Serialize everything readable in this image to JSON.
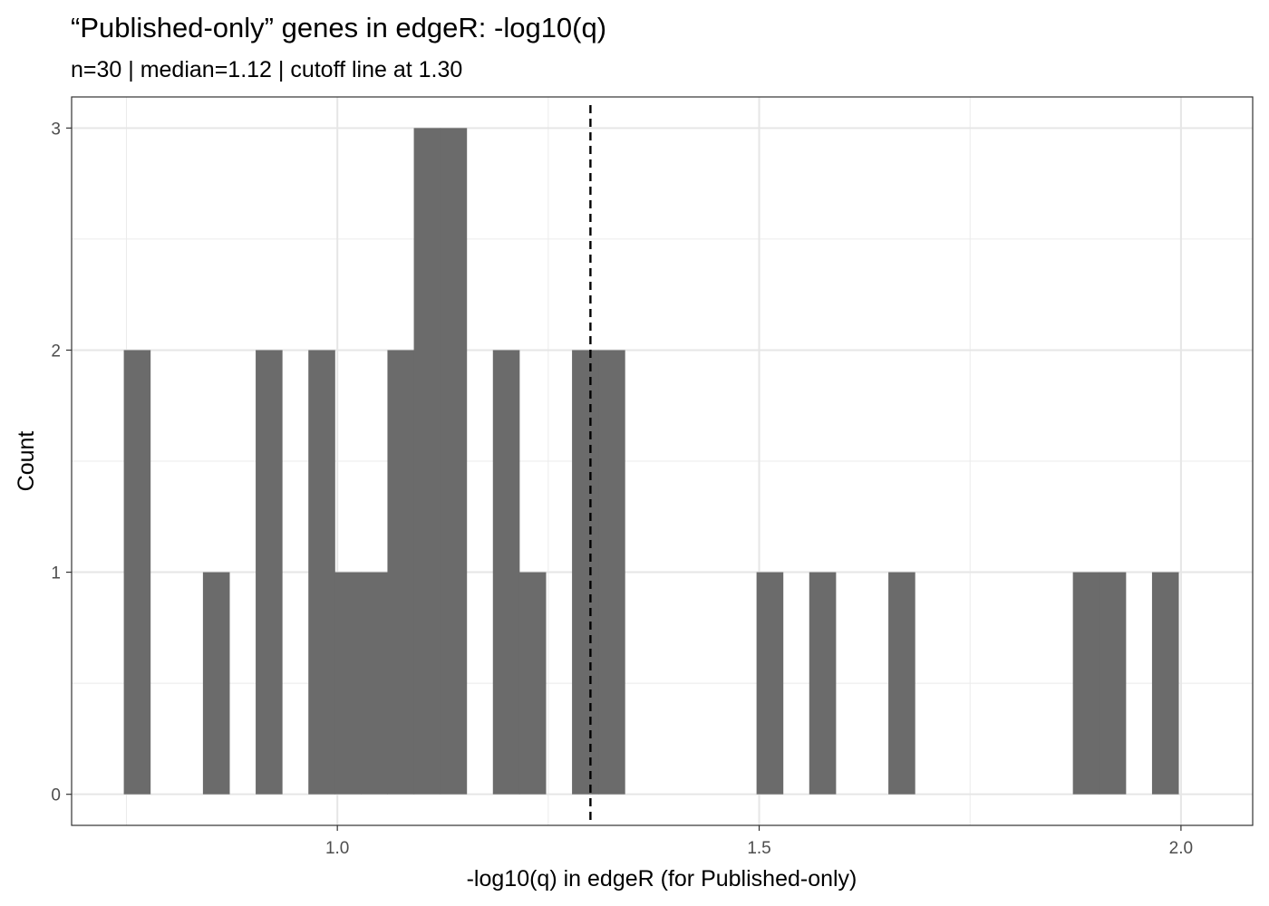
{
  "chart_data": {
    "type": "bar",
    "title": "“Published-only” genes in edgeR: -log10(q)",
    "subtitle": "n=30 | median=1.12 | cutoff line at 1.30",
    "xlabel": "-log10(q) in edgeR (for Published-only)",
    "ylabel": "Count",
    "xlim": [
      0.685,
      2.085
    ],
    "ylim": [
      -0.14,
      3.14
    ],
    "x_ticks": [
      1.0,
      1.5,
      2.0
    ],
    "x_tick_labels": [
      "1.0",
      "1.5",
      "2.0"
    ],
    "y_ticks": [
      0,
      1,
      2,
      3
    ],
    "y_tick_labels": [
      "0",
      "1",
      "2",
      "3"
    ],
    "x_minor_ticks": [
      0.75,
      1.25,
      1.75
    ],
    "y_minor_ticks": [
      0.5,
      1.5,
      2.5
    ],
    "bin_width": 0.03125,
    "bins": [
      {
        "x": 0.7625,
        "count": 2
      },
      {
        "x": 0.8563,
        "count": 1
      },
      {
        "x": 0.9188,
        "count": 2
      },
      {
        "x": 0.9813,
        "count": 2
      },
      {
        "x": 1.0125,
        "count": 1
      },
      {
        "x": 1.0438,
        "count": 1
      },
      {
        "x": 1.075,
        "count": 2
      },
      {
        "x": 1.1063,
        "count": 3
      },
      {
        "x": 1.1375,
        "count": 3
      },
      {
        "x": 1.2,
        "count": 2
      },
      {
        "x": 1.2313,
        "count": 1
      },
      {
        "x": 1.2938,
        "count": 2
      },
      {
        "x": 1.325,
        "count": 2
      },
      {
        "x": 1.5125,
        "count": 1
      },
      {
        "x": 1.575,
        "count": 1
      },
      {
        "x": 1.6688,
        "count": 1
      },
      {
        "x": 1.8875,
        "count": 1
      },
      {
        "x": 1.9188,
        "count": 1
      },
      {
        "x": 1.9813,
        "count": 1
      }
    ],
    "cutoff_line": {
      "x": 1.3,
      "style": "dashed"
    },
    "bar_color": "#6b6b6b",
    "grid": true,
    "legend": "none"
  }
}
